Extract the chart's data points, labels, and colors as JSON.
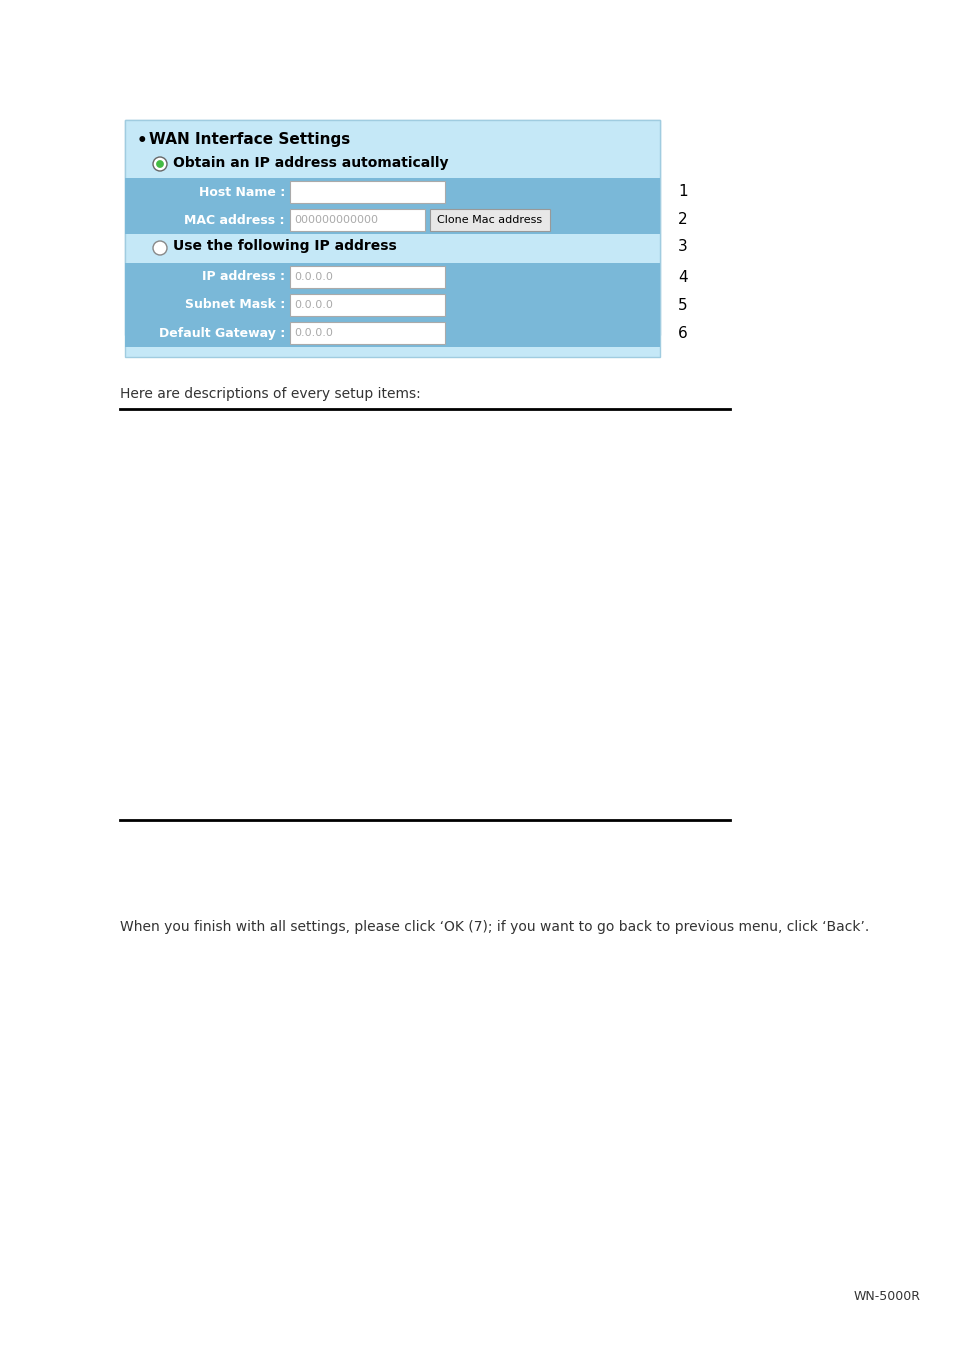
{
  "bg_color": "#ffffff",
  "panel_bg": "#c5e8f7",
  "panel_border": "#a0cce0",
  "row_bg": "#7ab8d8",
  "input_bg": "#ffffff",
  "input_border": "#aaaaaa",
  "button_bg": "#e8e8e8",
  "button_border": "#999999",
  "title_color": "#000000",
  "label_color": "#ffffff",
  "input_text_color": "#aaaaaa",
  "section_title": "WAN Interface Settings",
  "radio1_label": "Obtain an IP address automatically",
  "radio2_label": "Use the following IP address",
  "host_name_label": "Host Name :",
  "mac_label": "MAC address :",
  "mac_value": "000000000000",
  "ip_label": "IP address :",
  "subnet_label": "Subnet Mask :",
  "gateway_label": "Default Gateway :",
  "ip_value": "0.0.0.0",
  "clone_button_text": "Clone Mac address",
  "desc_text": "Here are descriptions of every setup items:",
  "bottom_text": "When you finish with all settings, please click ‘OK (7); if you want to go back to previous menu, click ‘Back’.",
  "footer_text": "WN-5000R",
  "line_color": "#000000",
  "number_color": "#000000",
  "text_color": "#333333"
}
